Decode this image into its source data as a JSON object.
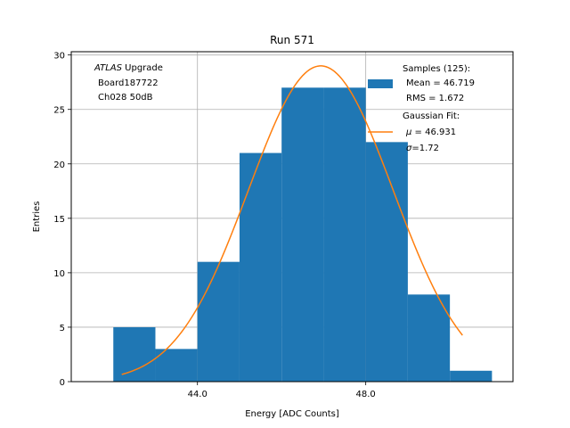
{
  "chart_data": {
    "type": "bar",
    "title": "Run 571",
    "xlabel": "Energy [ADC Counts]",
    "ylabel": "Entries",
    "xlim": [
      41.0,
      51.5
    ],
    "ylim": [
      0,
      30.3
    ],
    "xticks": [
      44.0,
      48.0
    ],
    "xtick_labels": [
      "44.0",
      "48.0"
    ],
    "yticks": [
      0,
      5,
      10,
      15,
      20,
      25,
      30
    ],
    "ytick_labels": [
      "0",
      "5",
      "10",
      "15",
      "20",
      "25",
      "30"
    ],
    "grid": true,
    "annotation": {
      "line1_italic": "ATLAS",
      "line1_rest": " Upgrade",
      "line2": "Board187722",
      "line3": "Ch028 50dB"
    },
    "legend": {
      "placement": "top-right",
      "hist_lines": [
        "Samples (125):",
        "Mean = 46.719",
        "RMS = 1.672"
      ],
      "fit_line1": "Gaussian Fit:",
      "fit_mu_label": "μ",
      "fit_mu_value": " = 46.931",
      "fit_sigma_label": "σ",
      "fit_sigma_value": "=1.72"
    },
    "histogram": {
      "name": "Samples (125)",
      "color": "#1f77b4",
      "bin_edges": [
        42.0,
        43.0,
        44.0,
        45.0,
        46.0,
        47.0,
        48.0,
        49.0,
        50.0,
        51.0
      ],
      "counts": [
        5,
        3,
        11,
        21,
        27,
        27,
        22,
        8,
        1
      ]
    },
    "fit": {
      "name": "Gaussian Fit",
      "color": "#ff7f0e",
      "mu": 46.931,
      "sigma": 1.72,
      "amplitude": 29.0,
      "x_range": [
        42.2,
        50.3
      ]
    }
  }
}
